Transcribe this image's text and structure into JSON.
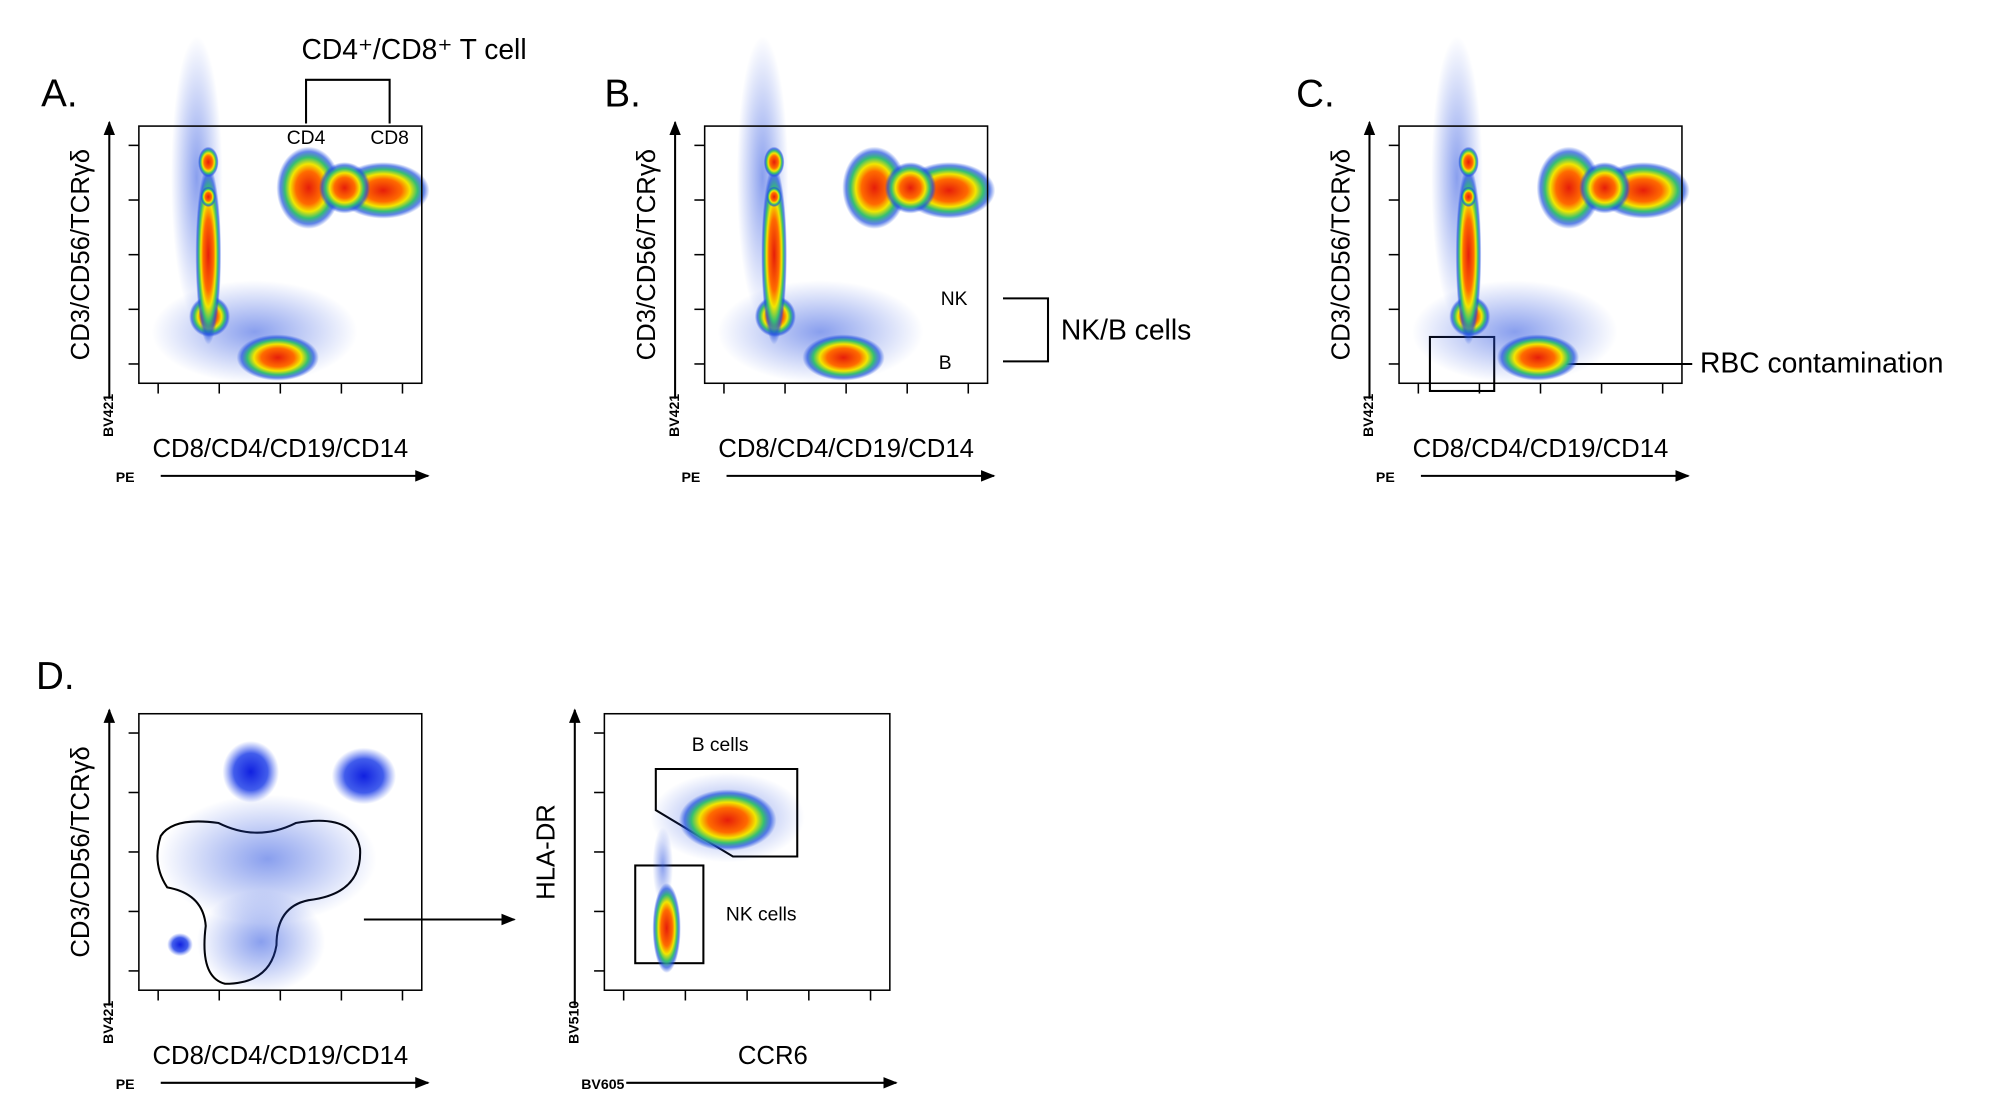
{
  "panels": [
    {
      "label": "A.",
      "plots": [
        {
          "y_axis": "CD3/CD56/TCRγδ",
          "y_channel": "BV421",
          "x_axis": "CD8/CD4/CD19/CD14",
          "x_channel": "PE",
          "annotations": [
            "CD4",
            "CD8"
          ]
        }
      ],
      "callout": "CD4⁺/CD8⁺ T cell"
    },
    {
      "label": "B.",
      "plots": [
        {
          "y_axis": "CD3/CD56/TCRγδ",
          "y_channel": "BV421",
          "x_axis": "CD8/CD4/CD19/CD14",
          "x_channel": "PE",
          "annotations": [
            "NK",
            "B"
          ]
        }
      ],
      "callout": "NK/B cells"
    },
    {
      "label": "C.",
      "plots": [
        {
          "y_axis": "CD3/CD56/TCRγδ",
          "y_channel": "BV421",
          "x_axis": "CD8/CD4/CD19/CD14",
          "x_channel": "PE",
          "annotations": []
        }
      ],
      "callout": "RBC contamination"
    },
    {
      "label": "D.",
      "plots": [
        {
          "y_axis": "CD3/CD56/TCRγδ",
          "y_channel": "BV421",
          "x_axis": "CD8/CD4/CD19/CD14",
          "x_channel": "PE",
          "annotations": []
        },
        {
          "y_axis": "HLA-DR",
          "y_channel": "BV510",
          "x_axis": "CCR6",
          "x_channel": "BV605",
          "annotations": [
            "B cells",
            "NK cells"
          ]
        }
      ]
    }
  ]
}
